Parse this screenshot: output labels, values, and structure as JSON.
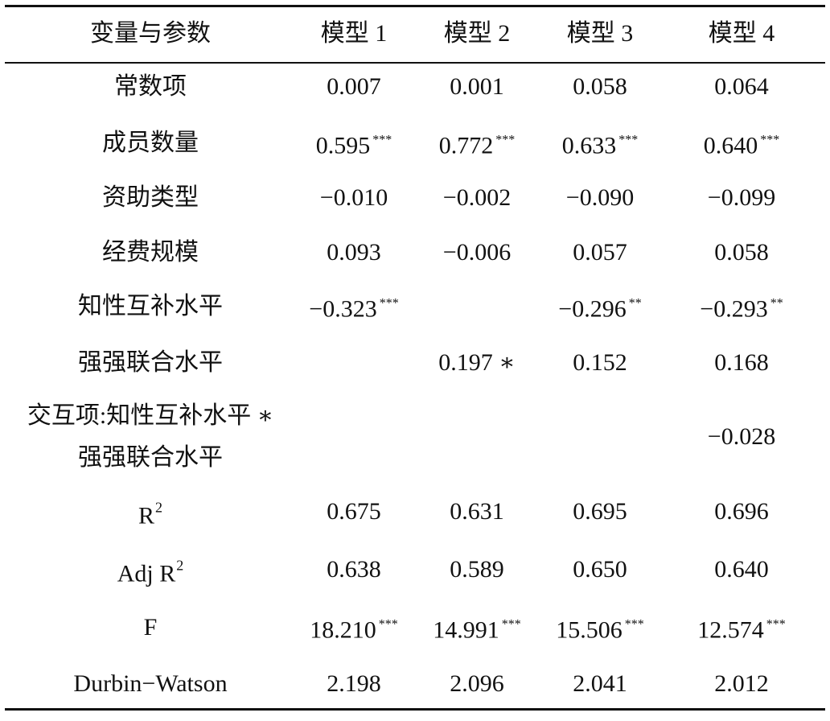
{
  "table": {
    "header": [
      "变量与参数",
      "模型 1",
      "模型 2",
      "模型 3",
      "模型 4"
    ],
    "rows": [
      {
        "label": "常数项",
        "cells": [
          {
            "value": "0.007"
          },
          {
            "value": "0.001"
          },
          {
            "value": "0.058"
          },
          {
            "value": "0.064"
          }
        ]
      },
      {
        "label": "成员数量",
        "cells": [
          {
            "value": "0.595",
            "sig": "***"
          },
          {
            "value": "0.772",
            "sig": "***"
          },
          {
            "value": "0.633",
            "sig": "***"
          },
          {
            "value": "0.640",
            "sig": "***"
          }
        ]
      },
      {
        "label": "资助类型",
        "cells": [
          {
            "value": "−0.010"
          },
          {
            "value": "−0.002"
          },
          {
            "value": "−0.090"
          },
          {
            "value": "−0.099"
          }
        ]
      },
      {
        "label": "经费规模",
        "cells": [
          {
            "value": "0.093"
          },
          {
            "value": "−0.006"
          },
          {
            "value": "0.057"
          },
          {
            "value": "0.058"
          }
        ]
      },
      {
        "label": "知性互补水平",
        "cells": [
          {
            "value": "−0.323",
            "sig": "***"
          },
          null,
          {
            "value": "−0.296",
            "sig": "**"
          },
          {
            "value": "−0.293",
            "sig": "**"
          }
        ]
      },
      {
        "label": "强强联合水平",
        "cells": [
          null,
          {
            "value": "0.197 ∗"
          },
          {
            "value": "0.152"
          },
          {
            "value": "0.168"
          }
        ]
      },
      {
        "label": {
          "lines": [
            "交互项:知性互补水平 ∗",
            "强强联合水平"
          ]
        },
        "cells": [
          null,
          null,
          null,
          {
            "value": "−0.028"
          }
        ]
      },
      {
        "label": {
          "text": "R",
          "sup": "2"
        },
        "cells": [
          {
            "value": "0.675"
          },
          {
            "value": "0.631"
          },
          {
            "value": "0.695"
          },
          {
            "value": "0.696"
          }
        ]
      },
      {
        "label": {
          "text": "Adj R",
          "sup": "2"
        },
        "cells": [
          {
            "value": "0.638"
          },
          {
            "value": "0.589"
          },
          {
            "value": "0.650"
          },
          {
            "value": "0.640"
          }
        ]
      },
      {
        "label": "F",
        "cells": [
          {
            "value": "18.210",
            "sig": "***"
          },
          {
            "value": "14.991",
            "sig": "***"
          },
          {
            "value": "15.506",
            "sig": "***"
          },
          {
            "value": "12.574",
            "sig": "***"
          }
        ]
      },
      {
        "label": "Durbin−Watson",
        "cells": [
          {
            "value": "2.198"
          },
          {
            "value": "2.096"
          },
          {
            "value": "2.041"
          },
          {
            "value": "2.012"
          }
        ]
      }
    ]
  }
}
